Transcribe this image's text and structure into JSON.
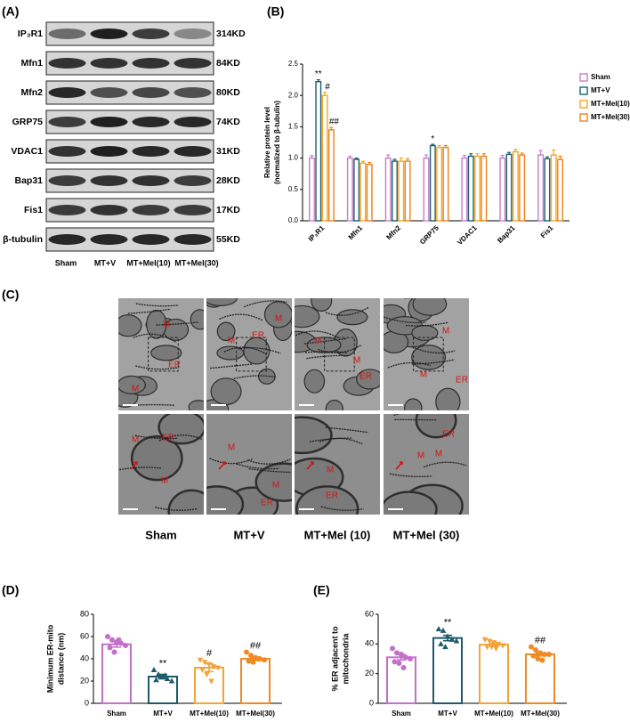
{
  "panel_labels": [
    "(A)",
    "(B)",
    "(C)",
    "(D)",
    "(E)"
  ],
  "blot": {
    "proteins": [
      "IP₃R1",
      "Mfn1",
      "Mfn2",
      "GRP75",
      "VDAC1",
      "Bap31",
      "Fis1",
      "β-tubulin"
    ],
    "sizes": [
      "314KD",
      "84KD",
      "80KD",
      "74KD",
      "31KD",
      "28KD",
      "17KD",
      "55KD"
    ],
    "lanes": [
      "Sham",
      "MT+V",
      "MT+Mel(10)",
      "MT+Mel(30)"
    ]
  },
  "tem": {
    "groups": [
      "Sham",
      "MT+V",
      "MT+Mel (10)",
      "MT+Mel (30)"
    ],
    "top_labels": [
      [
        "M",
        "ER",
        "M"
      ],
      [
        "M",
        "ER",
        "M"
      ],
      [
        "M",
        "M",
        "ER"
      ],
      [
        "M",
        "M",
        "ER"
      ]
    ],
    "bottom_labels": [
      [
        "M",
        "ER",
        "M"
      ],
      [
        "M",
        "M",
        "ER"
      ],
      [
        "M",
        "ER"
      ],
      [
        "ER",
        "M",
        "M"
      ]
    ]
  },
  "chart_data": [
    {
      "type": "bar",
      "ylabel": [
        "Relative protein level",
        "(normalized to β-tubulin)"
      ],
      "categories": [
        "IP₃R1",
        "Mfn1",
        "Mfn2",
        "GRP75",
        "VDAC1",
        "Bap31",
        "Fis1"
      ],
      "series": [
        {
          "name": "Sham",
          "color": "#c77dc7",
          "values": [
            1.0,
            1.0,
            1.0,
            1.0,
            1.0,
            1.0,
            1.05
          ],
          "errors": [
            0.04,
            0.03,
            0.05,
            0.05,
            0.04,
            0.04,
            0.07
          ]
        },
        {
          "name": "MT+V",
          "color": "#1b5e6e",
          "values": [
            2.22,
            0.98,
            0.95,
            1.2,
            1.03,
            1.06,
            0.99
          ],
          "errors": [
            0.03,
            0.02,
            0.03,
            0.02,
            0.04,
            0.03,
            0.03
          ],
          "marks": [
            "**",
            null,
            null,
            "*",
            null,
            null,
            null
          ]
        },
        {
          "name": "MT+Mel(10)",
          "color": "#f5a623",
          "values": [
            2.0,
            0.92,
            0.95,
            1.17,
            1.03,
            1.1,
            1.05
          ],
          "errors": [
            0.05,
            0.03,
            0.05,
            0.03,
            0.04,
            0.04,
            0.08
          ],
          "marks": [
            "#",
            null,
            null,
            null,
            null,
            null,
            null
          ]
        },
        {
          "name": "MT+Mel(30)",
          "color": "#f0801e",
          "values": [
            1.45,
            0.9,
            0.95,
            1.17,
            1.03,
            1.05,
            0.98
          ],
          "errors": [
            0.04,
            0.03,
            0.04,
            0.03,
            0.04,
            0.03,
            0.05
          ],
          "marks": [
            "##",
            null,
            null,
            null,
            null,
            null,
            null
          ]
        }
      ],
      "ylim": [
        0,
        2.5
      ],
      "yticks": [
        {
          "value": 0,
          "label": "0.0"
        },
        0.5,
        {
          "value": 1,
          "label": "1.0"
        },
        1.5,
        {
          "value": 2,
          "label": "2.0"
        },
        2.5
      ]
    },
    {
      "type": "dotbar",
      "ylabel": [
        "Minimum ER-mito",
        "distance (nm)"
      ],
      "categories": [
        "Sham",
        "MT+V",
        "MT+Mel(10)",
        "MT+Mel(30)"
      ],
      "colors": [
        "#c46fc8",
        "#1c5a6a",
        "#f2a33a",
        "#f08a24"
      ],
      "values": [
        53,
        24,
        32,
        40
      ],
      "errors": [
        2.5,
        2,
        3.5,
        1.5
      ],
      "marks": [
        null,
        "**",
        "#",
        "##"
      ],
      "points": [
        [
          60,
          57,
          55,
          54,
          52,
          50,
          46,
          57
        ],
        [
          30,
          26,
          24,
          22,
          20,
          21,
          24,
          25
        ],
        [
          39,
          37,
          35,
          33,
          32,
          30,
          26,
          20
        ],
        [
          46,
          43,
          41,
          40,
          39,
          38,
          37,
          40
        ]
      ],
      "ylim": [
        0,
        80
      ],
      "yticks": [
        0,
        20,
        40,
        60,
        80
      ]
    },
    {
      "type": "dotbar",
      "ylabel": [
        "% ER adjacent to",
        "mitochondria"
      ],
      "categories": [
        "Sham",
        "MT+V",
        "MT+Mel(10)",
        "MT+Mel(30)"
      ],
      "colors": [
        "#c46fc8",
        "#1c5a6a",
        "#f2a33a",
        "#f08a24"
      ],
      "values": [
        31,
        44,
        39.5,
        33
      ],
      "errors": [
        1.8,
        1.8,
        0.9,
        1.1
      ],
      "marks": [
        null,
        "**",
        null,
        "##"
      ],
      "points": [
        [
          37,
          34,
          33,
          31,
          30,
          28,
          27,
          24
        ],
        [
          50,
          49,
          45,
          43,
          42,
          40,
          38
        ],
        [
          43,
          42,
          41,
          40,
          39,
          38,
          38,
          37
        ],
        [
          38,
          36,
          34,
          33,
          33,
          32,
          30,
          29
        ]
      ],
      "ylim": [
        0,
        60
      ],
      "yticks": [
        0,
        20,
        40,
        60
      ]
    }
  ]
}
